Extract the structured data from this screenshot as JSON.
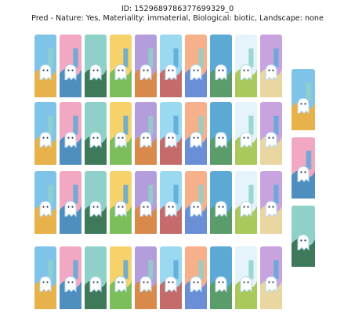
{
  "header": {
    "id_line": "ID: 1529689786377699329_0",
    "pred_line": "Pred - Nature: Yes, Materiality: immaterial, Biological: biotic, Landscape: none"
  },
  "image": {
    "description_icon": "ghost-card-collage-image",
    "colors": {
      "sky": [
        "#7fc4e8",
        "#f2a7c3",
        "#8fd1c9",
        "#f7d26a",
        "#b39ddb",
        "#9bd9f0",
        "#f6b08a",
        "#5da9d6",
        "#e5f3fb",
        "#c9a3e0"
      ],
      "ground": [
        "#7cbf5a",
        "#e7b24a",
        "#5a9d6b",
        "#d98a4a",
        "#4f8fbf",
        "#a9c95c",
        "#c66b6b",
        "#3e7a5a",
        "#e9d6a0",
        "#6b8fd6"
      ],
      "ghost": "#ffffff",
      "ghost_outline": "#b8d8ee"
    }
  }
}
